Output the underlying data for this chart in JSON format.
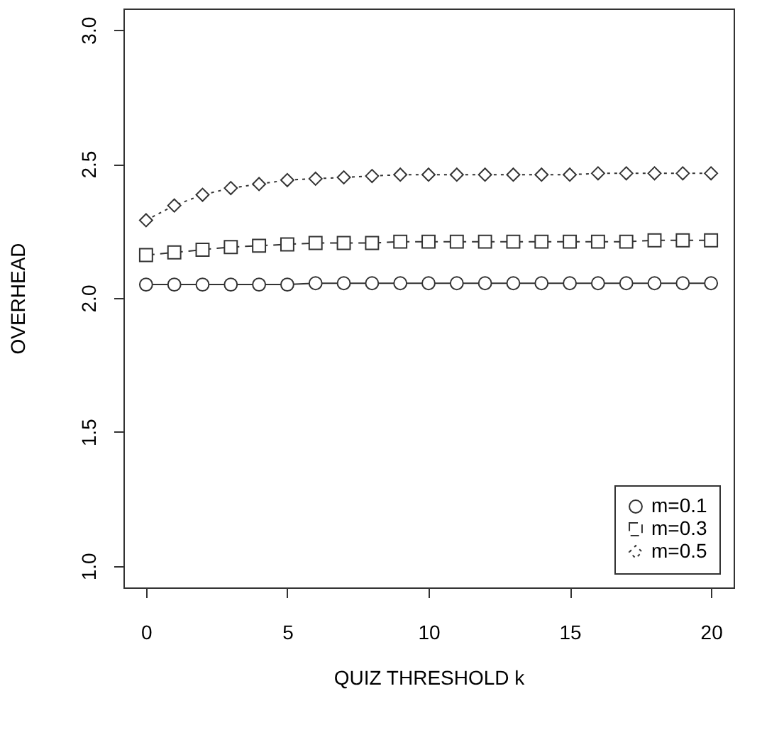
{
  "chart_data": {
    "type": "line",
    "xlabel": "QUIZ THRESHOLD k",
    "ylabel": "OVERHEAD",
    "x": [
      0,
      1,
      2,
      3,
      4,
      5,
      6,
      7,
      8,
      9,
      10,
      11,
      12,
      13,
      14,
      15,
      16,
      17,
      18,
      19,
      20
    ],
    "xlim": [
      -0.8,
      20.8
    ],
    "xticks": [
      0,
      5,
      10,
      15,
      20
    ],
    "ylim": [
      0.92,
      3.08
    ],
    "yticks": [
      {
        "value": 1,
        "label": "1.0"
      },
      1.5,
      {
        "value": 2,
        "label": "2.0"
      },
      2.5,
      {
        "value": 3,
        "label": "3.0"
      }
    ],
    "legend": "bottom right",
    "grid": false,
    "series": [
      {
        "name": "m=0.1",
        "color": "#333333",
        "marker": "circle",
        "line_style": "solid",
        "values": [
          2.05,
          2.05,
          2.05,
          2.05,
          2.05,
          2.05,
          2.055,
          2.055,
          2.055,
          2.055,
          2.055,
          2.055,
          2.055,
          2.055,
          2.055,
          2.055,
          2.055,
          2.055,
          2.055,
          2.055,
          2.055
        ]
      },
      {
        "name": "m=0.3",
        "color": "#333333",
        "marker": "square",
        "line_style": "dashed",
        "values": [
          2.16,
          2.17,
          2.18,
          2.19,
          2.195,
          2.2,
          2.205,
          2.205,
          2.205,
          2.21,
          2.21,
          2.21,
          2.21,
          2.21,
          2.21,
          2.21,
          2.21,
          2.21,
          2.215,
          2.215,
          2.215
        ]
      },
      {
        "name": "m=0.5",
        "color": "#333333",
        "marker": "diamond",
        "line_style": "dotted",
        "values": [
          2.29,
          2.345,
          2.385,
          2.41,
          2.425,
          2.44,
          2.445,
          2.45,
          2.455,
          2.46,
          2.46,
          2.46,
          2.46,
          2.46,
          2.46,
          2.46,
          2.465,
          2.465,
          2.465,
          2.465,
          2.465
        ]
      }
    ]
  }
}
